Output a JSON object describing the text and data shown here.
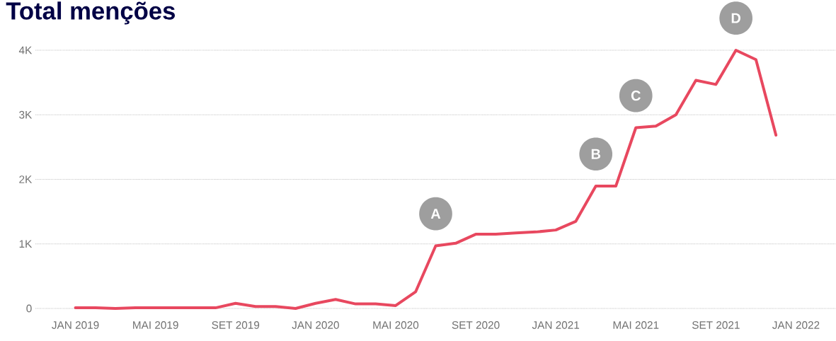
{
  "chart_data": {
    "type": "line",
    "title": "Total menções",
    "x": [
      "2019-01",
      "2019-02",
      "2019-03",
      "2019-04",
      "2019-05",
      "2019-06",
      "2019-07",
      "2019-08",
      "2019-09",
      "2019-10",
      "2019-11",
      "2019-12",
      "2020-01",
      "2020-02",
      "2020-03",
      "2020-04",
      "2020-05",
      "2020-06",
      "2020-07",
      "2020-08",
      "2020-09",
      "2020-10",
      "2020-11",
      "2020-12",
      "2021-01",
      "2021-02",
      "2021-03",
      "2021-04",
      "2021-05",
      "2021-06",
      "2021-07",
      "2021-08",
      "2021-09",
      "2021-10",
      "2021-11",
      "2021-12"
    ],
    "values": [
      10,
      10,
      0,
      10,
      10,
      10,
      10,
      10,
      80,
      30,
      30,
      0,
      80,
      140,
      70,
      70,
      45,
      260,
      970,
      1010,
      1150,
      1150,
      1170,
      1185,
      1215,
      1350,
      1895,
      1895,
      2800,
      2825,
      3000,
      3535,
      3470,
      4000,
      3855,
      2685
    ],
    "color": "#e8485f",
    "xlim": [
      "2018-11",
      "2022-03"
    ],
    "xticks": [
      {
        "value": "2019-01",
        "label": "JAN 2019"
      },
      {
        "value": "2019-05",
        "label": "MAI 2019"
      },
      {
        "value": "2019-09",
        "label": "SET 2019"
      },
      {
        "value": "2020-01",
        "label": "JAN 2020"
      },
      {
        "value": "2020-05",
        "label": "MAI 2020"
      },
      {
        "value": "2020-09",
        "label": "SET 2020"
      },
      {
        "value": "2021-01",
        "label": "JAN 2021"
      },
      {
        "value": "2021-05",
        "label": "MAI 2021"
      },
      {
        "value": "2021-09",
        "label": "SET 2021"
      },
      {
        "value": "2022-01",
        "label": "JAN 2022"
      }
    ],
    "ylim": [
      0,
      4000
    ],
    "yticks": [
      0,
      {
        "value": 1000,
        "label": "1K"
      },
      {
        "value": 2000,
        "label": "2K"
      },
      {
        "value": 3000,
        "label": "3K"
      },
      {
        "value": 4000,
        "label": "4K"
      }
    ],
    "grid": "y",
    "annotations": [
      {
        "text": "A",
        "x": "2020-07",
        "y": 970
      },
      {
        "text": "B",
        "x": "2021-03",
        "y": 1895
      },
      {
        "text": "C",
        "x": "2021-05",
        "y": 2800
      },
      {
        "text": "D",
        "x": "2021-10",
        "y": 4000
      }
    ]
  }
}
